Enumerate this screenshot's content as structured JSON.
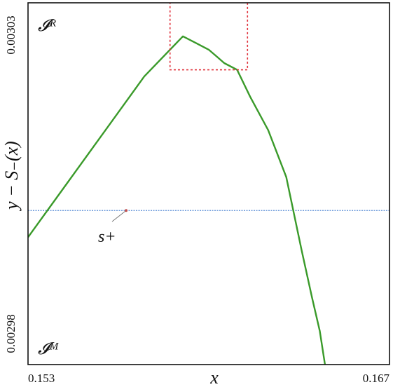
{
  "chart_data": {
    "type": "line",
    "title": "",
    "xlabel": "x",
    "ylabel": "y − S₋(x)",
    "xlim": [
      0.153,
      0.167
    ],
    "ylim": [
      0.002979,
      0.003033
    ],
    "x_ticks": [
      "0.153",
      "0.167"
    ],
    "y_ticks": [
      "0.00303",
      "0.00298"
    ],
    "region_labels": {
      "top": "𝓘ᴿ",
      "bottom": "𝓘ᴹ"
    },
    "grid": false,
    "legend": "none",
    "series": [
      {
        "color": "#3a9a2a",
        "points": [
          [
            0.153,
            0.002998
          ],
          [
            0.1545,
            0.003006
          ],
          [
            0.156,
            0.003014
          ],
          [
            0.1575,
            0.003022
          ],
          [
            0.159,
            0.003028
          ],
          [
            0.1595,
            0.003027
          ],
          [
            0.16,
            0.003026
          ],
          [
            0.1603,
            0.003025
          ],
          [
            0.1606,
            0.003024
          ],
          [
            0.1611,
            0.003023
          ],
          [
            0.1616,
            0.003019
          ],
          [
            0.1623,
            0.003014
          ],
          [
            0.163,
            0.003007
          ],
          [
            0.1636,
            0.002996
          ],
          [
            0.164,
            0.002989
          ],
          [
            0.1643,
            0.002984
          ],
          [
            0.1645,
            0.002979
          ]
        ]
      }
    ],
    "reference_line": {
      "y": 0.003002,
      "color": "#5b8fd6",
      "style": "dotted"
    },
    "highlight_box": {
      "x": [
        0.1585,
        0.1615
      ],
      "y": [
        0.003023,
        0.003034
      ],
      "color": "#e0303a",
      "style": "dotted"
    },
    "annotation": {
      "text": "s+",
      "points_to": [
        0.1568,
        0.003002
      ]
    }
  }
}
